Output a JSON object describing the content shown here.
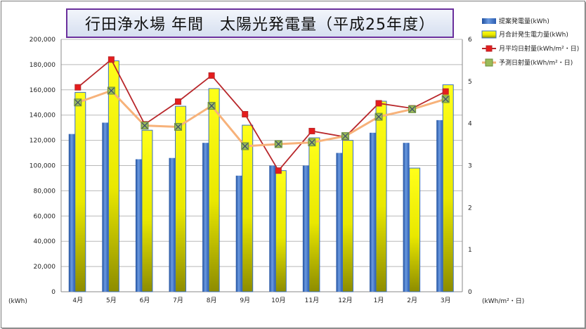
{
  "chart_data": {
    "type": "bar",
    "title": "行田浄水場 年間　太陽光発電量（平成25年度）",
    "categories": [
      "4月",
      "5月",
      "6月",
      "7月",
      "8月",
      "9月",
      "10月",
      "11月",
      "12月",
      "1月",
      "2月",
      "3月"
    ],
    "left_axis": {
      "unit_label": "(kWh)",
      "ylim": [
        0,
        200000
      ],
      "ticks": [
        "0",
        "20,000",
        "40,000",
        "60,000",
        "80,000",
        "100,000",
        "120,000",
        "140,000",
        "160,000",
        "180,000",
        "200,000"
      ]
    },
    "right_axis": {
      "unit_label": "(kWh/m²・日)",
      "ylim": [
        0,
        6
      ],
      "ticks": [
        "0",
        "1",
        "2",
        "3",
        "4",
        "5",
        "6"
      ]
    },
    "series": [
      {
        "name": "提案発電量(kWh)",
        "type": "bar",
        "axis": "left",
        "color": "#3a6fc4",
        "values": [
          125000,
          134000,
          105000,
          106000,
          118000,
          92000,
          100000,
          100000,
          110000,
          126000,
          118000,
          136000
        ]
      },
      {
        "name": "月合計発生電力量(kWh)",
        "type": "bar",
        "axis": "left",
        "color": "#f2f200",
        "values": [
          158000,
          183000,
          128000,
          147000,
          161000,
          132000,
          96000,
          122000,
          120000,
          151000,
          98000,
          164000
        ]
      },
      {
        "name": "月平均日射量(kWh/m²・日)",
        "type": "line",
        "axis": "right",
        "color": "#b8262a",
        "values": [
          4.86,
          5.52,
          3.98,
          4.52,
          5.14,
          4.22,
          2.88,
          3.82,
          3.68,
          4.48,
          4.36,
          4.76
        ]
      },
      {
        "name": "予測日射量(kWh/m²・日)",
        "type": "line",
        "axis": "right",
        "color": "#f7b27a",
        "values": [
          4.5,
          4.78,
          3.95,
          3.92,
          4.42,
          3.46,
          3.51,
          3.55,
          3.7,
          4.16,
          4.34,
          4.58
        ]
      }
    ],
    "grid": true,
    "legend_position": "right"
  }
}
